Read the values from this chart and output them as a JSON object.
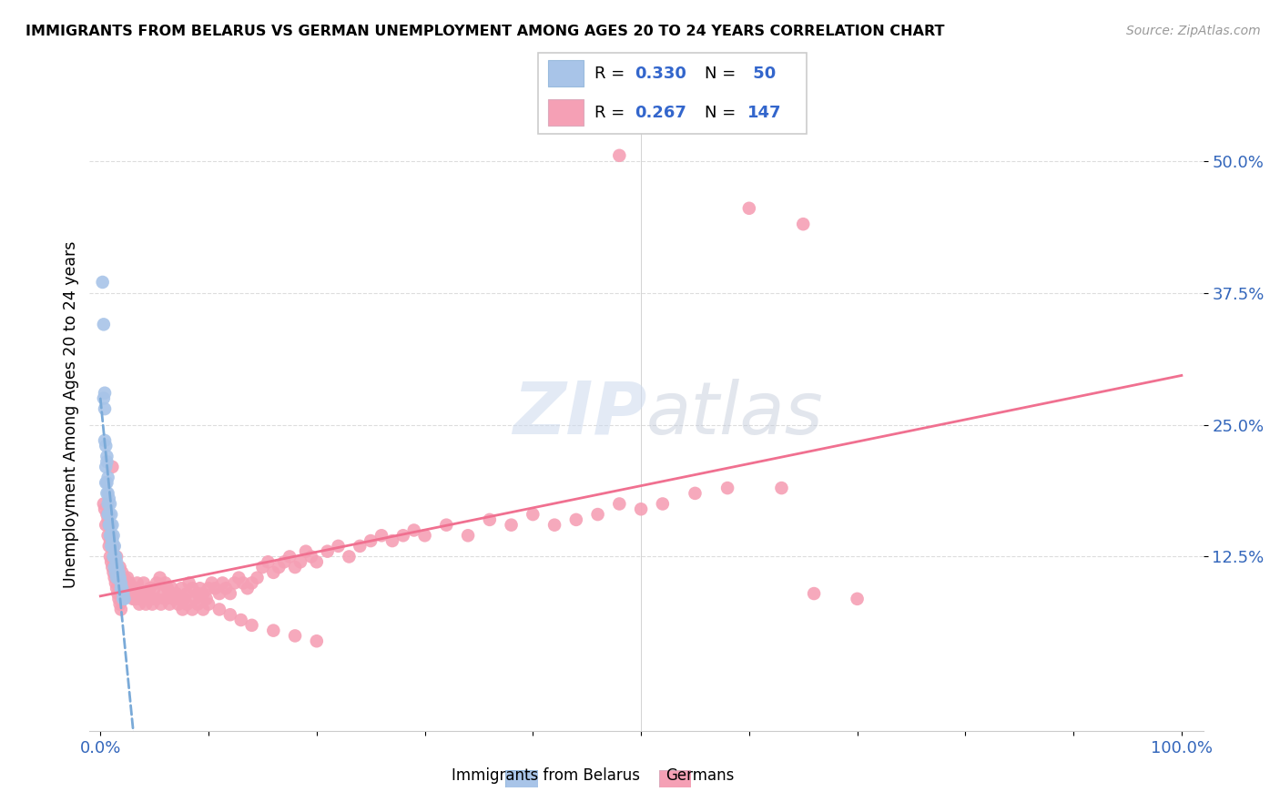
{
  "title": "IMMIGRANTS FROM BELARUS VS GERMAN UNEMPLOYMENT AMONG AGES 20 TO 24 YEARS CORRELATION CHART",
  "source": "Source: ZipAtlas.com",
  "ylabel": "Unemployment Among Ages 20 to 24 years",
  "ytick_labels": [
    "12.5%",
    "25.0%",
    "37.5%",
    "50.0%"
  ],
  "ytick_values": [
    0.125,
    0.25,
    0.375,
    0.5
  ],
  "xlim": [
    -0.01,
    1.02
  ],
  "ylim": [
    -0.04,
    0.56
  ],
  "color_belarus": "#a8c4e8",
  "color_german": "#f5a0b5",
  "trendline_color_belarus": "#7aaad8",
  "trendline_color_german": "#f07090",
  "watermark_zip": "ZIP",
  "watermark_atlas": "atlas",
  "watermark_color": "#c8d8ee",
  "watermark_atlas_color": "#c8c8d8",
  "belarus_x": [
    0.002,
    0.003,
    0.004,
    0.005,
    0.006,
    0.007,
    0.008,
    0.009,
    0.01,
    0.011,
    0.012,
    0.013,
    0.014,
    0.015,
    0.016,
    0.017,
    0.018,
    0.019,
    0.02,
    0.021,
    0.022,
    0.003,
    0.004,
    0.005,
    0.006,
    0.007,
    0.008,
    0.009,
    0.01,
    0.011,
    0.012,
    0.013,
    0.014,
    0.015,
    0.007,
    0.009,
    0.011,
    0.013,
    0.015,
    0.017,
    0.019,
    0.021,
    0.005,
    0.006,
    0.007,
    0.008,
    0.009,
    0.01,
    0.004,
    0.006
  ],
  "belarus_y": [
    0.385,
    0.345,
    0.28,
    0.23,
    0.22,
    0.2,
    0.18,
    0.175,
    0.165,
    0.155,
    0.145,
    0.135,
    0.125,
    0.12,
    0.115,
    0.11,
    0.105,
    0.1,
    0.095,
    0.09,
    0.085,
    0.275,
    0.265,
    0.21,
    0.195,
    0.185,
    0.165,
    0.155,
    0.145,
    0.135,
    0.125,
    0.115,
    0.11,
    0.105,
    0.165,
    0.155,
    0.14,
    0.125,
    0.115,
    0.105,
    0.095,
    0.085,
    0.195,
    0.185,
    0.175,
    0.155,
    0.145,
    0.135,
    0.235,
    0.215
  ],
  "german_x": [
    0.003,
    0.005,
    0.007,
    0.008,
    0.009,
    0.01,
    0.011,
    0.012,
    0.013,
    0.014,
    0.015,
    0.016,
    0.017,
    0.018,
    0.019,
    0.02,
    0.022,
    0.024,
    0.025,
    0.027,
    0.028,
    0.03,
    0.032,
    0.034,
    0.035,
    0.037,
    0.038,
    0.04,
    0.042,
    0.044,
    0.046,
    0.048,
    0.05,
    0.052,
    0.055,
    0.058,
    0.06,
    0.062,
    0.064,
    0.066,
    0.068,
    0.07,
    0.072,
    0.075,
    0.078,
    0.08,
    0.082,
    0.085,
    0.088,
    0.09,
    0.092,
    0.095,
    0.098,
    0.1,
    0.103,
    0.106,
    0.11,
    0.113,
    0.116,
    0.12,
    0.124,
    0.128,
    0.132,
    0.136,
    0.14,
    0.145,
    0.15,
    0.155,
    0.16,
    0.165,
    0.17,
    0.175,
    0.18,
    0.185,
    0.19,
    0.195,
    0.2,
    0.21,
    0.22,
    0.23,
    0.24,
    0.25,
    0.26,
    0.27,
    0.28,
    0.29,
    0.3,
    0.32,
    0.34,
    0.36,
    0.38,
    0.4,
    0.42,
    0.44,
    0.46,
    0.48,
    0.5,
    0.52,
    0.55,
    0.58,
    0.006,
    0.008,
    0.01,
    0.012,
    0.015,
    0.018,
    0.02,
    0.022,
    0.024,
    0.026,
    0.028,
    0.03,
    0.033,
    0.036,
    0.039,
    0.042,
    0.045,
    0.048,
    0.052,
    0.056,
    0.06,
    0.064,
    0.068,
    0.072,
    0.076,
    0.08,
    0.085,
    0.09,
    0.095,
    0.1,
    0.11,
    0.12,
    0.13,
    0.14,
    0.16,
    0.18,
    0.2,
    0.63,
    0.66,
    0.7,
    0.004,
    0.007,
    0.009,
    0.011,
    0.6,
    0.65,
    0.48
  ],
  "german_y": [
    0.175,
    0.155,
    0.145,
    0.135,
    0.125,
    0.12,
    0.115,
    0.11,
    0.105,
    0.1,
    0.095,
    0.09,
    0.085,
    0.08,
    0.075,
    0.1,
    0.095,
    0.09,
    0.105,
    0.1,
    0.095,
    0.09,
    0.085,
    0.1,
    0.095,
    0.085,
    0.09,
    0.1,
    0.085,
    0.09,
    0.095,
    0.085,
    0.095,
    0.1,
    0.105,
    0.09,
    0.1,
    0.095,
    0.09,
    0.095,
    0.085,
    0.09,
    0.085,
    0.095,
    0.085,
    0.09,
    0.1,
    0.095,
    0.085,
    0.09,
    0.095,
    0.09,
    0.085,
    0.095,
    0.1,
    0.095,
    0.09,
    0.1,
    0.095,
    0.09,
    0.1,
    0.105,
    0.1,
    0.095,
    0.1,
    0.105,
    0.115,
    0.12,
    0.11,
    0.115,
    0.12,
    0.125,
    0.115,
    0.12,
    0.13,
    0.125,
    0.12,
    0.13,
    0.135,
    0.125,
    0.135,
    0.14,
    0.145,
    0.14,
    0.145,
    0.15,
    0.145,
    0.155,
    0.145,
    0.16,
    0.155,
    0.165,
    0.155,
    0.16,
    0.165,
    0.175,
    0.17,
    0.175,
    0.185,
    0.19,
    0.165,
    0.155,
    0.145,
    0.135,
    0.125,
    0.115,
    0.11,
    0.105,
    0.1,
    0.095,
    0.09,
    0.085,
    0.085,
    0.08,
    0.085,
    0.08,
    0.085,
    0.08,
    0.085,
    0.08,
    0.085,
    0.08,
    0.085,
    0.08,
    0.075,
    0.08,
    0.075,
    0.08,
    0.075,
    0.08,
    0.075,
    0.07,
    0.065,
    0.06,
    0.055,
    0.05,
    0.045,
    0.19,
    0.09,
    0.085,
    0.17,
    0.16,
    0.14,
    0.21,
    0.455,
    0.44,
    0.505
  ],
  "xtick_positions": [
    0.0,
    0.1,
    0.2,
    0.3,
    0.4,
    0.5,
    0.6,
    0.7,
    0.8,
    0.9,
    1.0
  ],
  "grid_color": "#dddddd",
  "spine_color": "#cccccc"
}
